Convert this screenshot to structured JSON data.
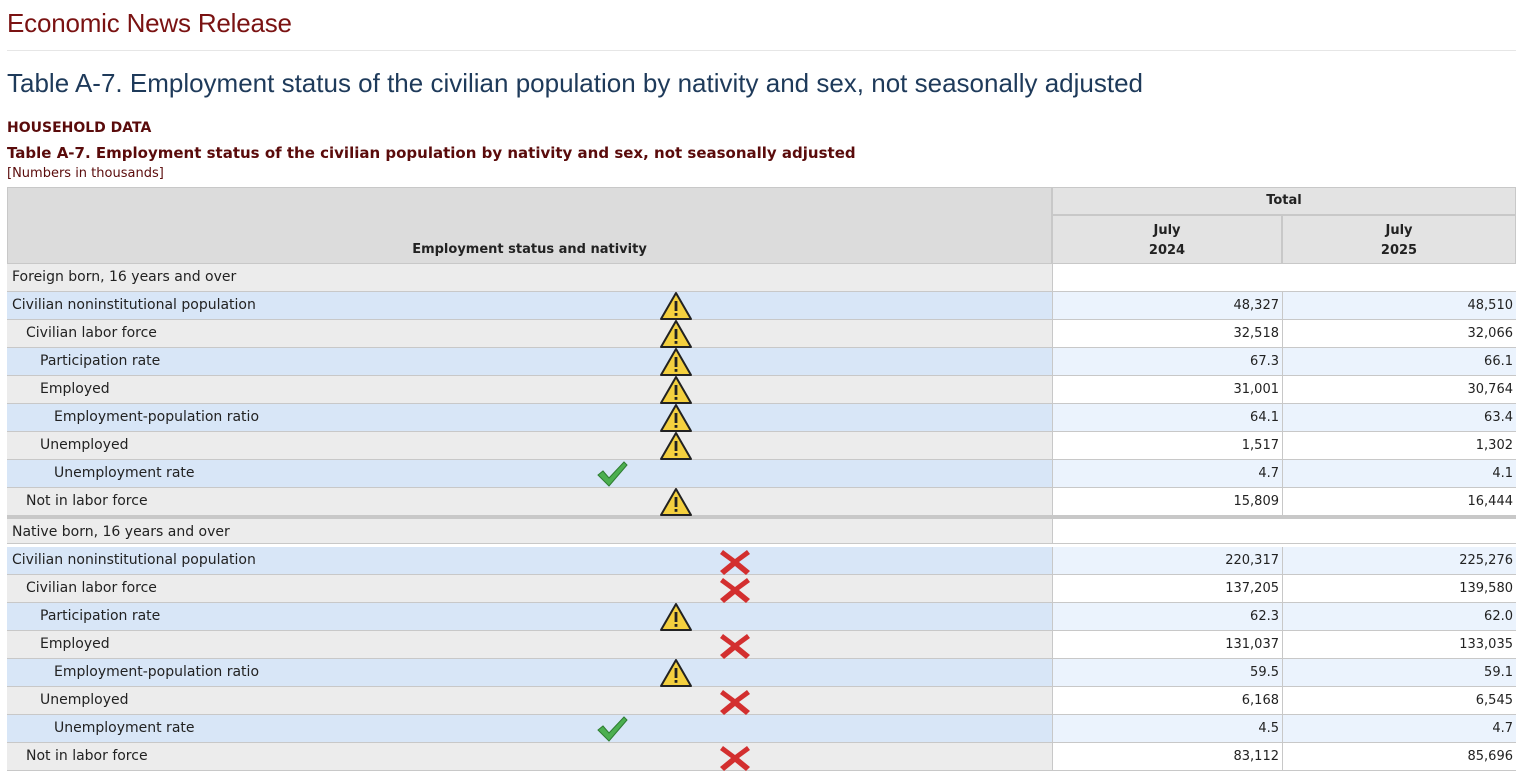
{
  "header": {
    "release_title": "Economic News Release",
    "page_title": "Table A-7. Employment status of the civilian population by nativity and sex, not seasonally adjusted"
  },
  "table": {
    "category": "HOUSEHOLD DATA",
    "title": "Table A-7. Employment status of the civilian population by nativity and sex, not seasonally adjusted",
    "units": "[Numbers in thousands]",
    "stub_header": "Employment status and nativity",
    "group_header": "Total",
    "columns": [
      {
        "month": "July",
        "year": "2024"
      },
      {
        "month": "July",
        "year": "2025"
      }
    ],
    "sections": [
      {
        "label": "Foreign born, 16 years and over",
        "rows": [
          {
            "label": "Civilian noninstitutional population",
            "v2024": "48,327",
            "v2025": "48,510",
            "icon": "warning-icon"
          },
          {
            "label": "Civilian labor force",
            "v2024": "32,518",
            "v2025": "32,066",
            "icon": "warning-icon"
          },
          {
            "label": "Participation rate",
            "v2024": "67.3",
            "v2025": "66.1",
            "icon": "warning-icon"
          },
          {
            "label": "Employed",
            "v2024": "31,001",
            "v2025": "30,764",
            "icon": "warning-icon"
          },
          {
            "label": "Employment-population ratio",
            "v2024": "64.1",
            "v2025": "63.4",
            "icon": "warning-icon"
          },
          {
            "label": "Unemployed",
            "v2024": "1,517",
            "v2025": "1,302",
            "icon": "warning-icon"
          },
          {
            "label": "Unemployment rate",
            "v2024": "4.7",
            "v2025": "4.1",
            "icon": "checkmark-icon"
          },
          {
            "label": "Not in labor force",
            "v2024": "15,809",
            "v2025": "16,444",
            "icon": "warning-icon"
          }
        ]
      },
      {
        "label": "Native born, 16 years and over",
        "rows": [
          {
            "label": "Civilian noninstitutional population",
            "v2024": "220,317",
            "v2025": "225,276",
            "icon": "cross-icon"
          },
          {
            "label": "Civilian labor force",
            "v2024": "137,205",
            "v2025": "139,580",
            "icon": "cross-icon"
          },
          {
            "label": "Participation rate",
            "v2024": "62.3",
            "v2025": "62.0",
            "icon": "warning-icon"
          },
          {
            "label": "Employed",
            "v2024": "131,037",
            "v2025": "133,035",
            "icon": "cross-icon"
          },
          {
            "label": "Employment-population ratio",
            "v2024": "59.5",
            "v2025": "59.1",
            "icon": "warning-icon"
          },
          {
            "label": "Unemployed",
            "v2024": "6,168",
            "v2025": "6,545",
            "icon": "cross-icon"
          },
          {
            "label": "Unemployment rate",
            "v2024": "4.5",
            "v2025": "4.7",
            "icon": "checkmark-icon"
          },
          {
            "label": "Not in labor force",
            "v2024": "83,112",
            "v2025": "85,696",
            "icon": "cross-icon"
          }
        ]
      }
    ]
  },
  "colors": {
    "title": "#7a1212",
    "page_title": "#1e3a5a",
    "row_alt": "#d8e6f7",
    "warning": "#f4d03f",
    "check": "#4caf50",
    "cross": "#d32f2f"
  }
}
